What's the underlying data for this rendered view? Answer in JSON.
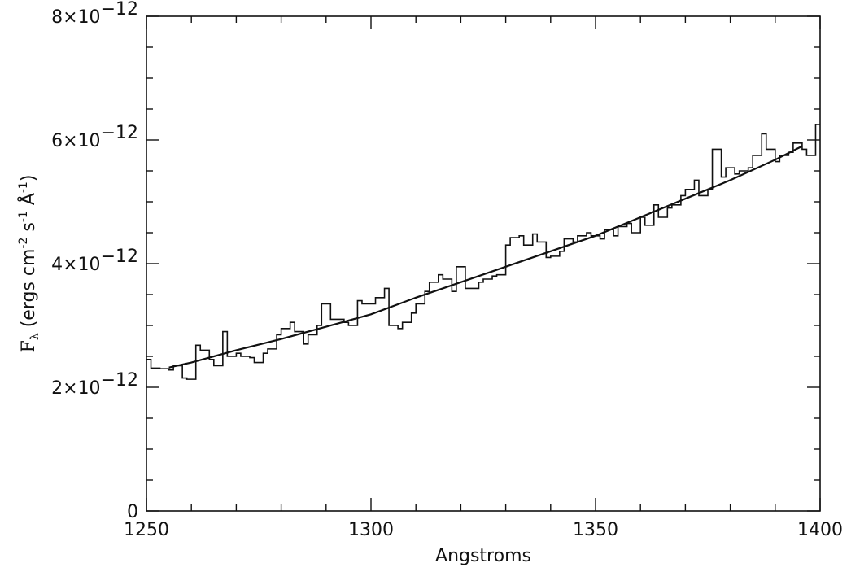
{
  "chart_data": {
    "type": "line",
    "xlabel": "Angstroms",
    "ylabel": {
      "main": "F",
      "sub": "λ",
      "units_prefix": " (ergs cm",
      "units_cm_exp": "-2",
      "units_mid": " s",
      "units_s_exp": "-1",
      "units_A": " Å",
      "units_A_exp": "-1",
      "units_suffix": ")"
    },
    "xlim": [
      1250,
      1400
    ],
    "ylim": [
      0,
      8e-12
    ],
    "x_ticks": [
      {
        "value": 1250,
        "label": "1250"
      },
      {
        "value": 1300,
        "label": "1300"
      },
      {
        "value": 1350,
        "label": "1350"
      },
      {
        "value": 1400,
        "label": "1400"
      }
    ],
    "y_ticks": [
      {
        "value": 0,
        "label": "0",
        "mant": "",
        "exp": ""
      },
      {
        "value": 2e-12,
        "label": "2×10−12",
        "mant": "2×10",
        "exp": "−12"
      },
      {
        "value": 4e-12,
        "label": "4×10−12",
        "mant": "4×10",
        "exp": "−12"
      },
      {
        "value": 6e-12,
        "label": "6×10−12",
        "mant": "6×10",
        "exp": "−12"
      },
      {
        "value": 8e-12,
        "label": "8×10−12",
        "mant": "8×10",
        "exp": "−12"
      }
    ],
    "series": [
      {
        "style": "step",
        "x": [
          1250,
          1251,
          1253,
          1255,
          1256,
          1258,
          1259,
          1261,
          1262,
          1264,
          1265,
          1267,
          1268,
          1270,
          1271,
          1273,
          1274,
          1276,
          1277,
          1279,
          1280,
          1282,
          1283,
          1285,
          1286,
          1288,
          1289,
          1291,
          1292,
          1294,
          1295,
          1297,
          1298,
          1300,
          1301,
          1303,
          1304,
          1306,
          1307,
          1309,
          1310,
          1312,
          1313,
          1315,
          1316,
          1318,
          1319,
          1321,
          1322,
          1324,
          1325,
          1327,
          1328,
          1330,
          1331,
          1333,
          1334,
          1336,
          1337,
          1339,
          1340,
          1342,
          1343,
          1345,
          1346,
          1348,
          1349,
          1351,
          1352,
          1354,
          1355,
          1357,
          1358,
          1360,
          1361,
          1363,
          1364,
          1366,
          1367,
          1369,
          1370,
          1372,
          1373,
          1375,
          1376,
          1378,
          1379,
          1381,
          1382,
          1384,
          1385,
          1387,
          1388,
          1390,
          1391,
          1393,
          1394,
          1396,
          1397,
          1399,
          1400
        ],
        "values": [
          2.45e-12,
          2.31e-12,
          2.3e-12,
          2.28e-12,
          2.35e-12,
          2.15e-12,
          2.13e-12,
          2.68e-12,
          2.6e-12,
          2.45e-12,
          2.35e-12,
          2.9e-12,
          2.5e-12,
          2.55e-12,
          2.5e-12,
          2.48e-12,
          2.4e-12,
          2.55e-12,
          2.62e-12,
          2.85e-12,
          2.95e-12,
          3.05e-12,
          2.9e-12,
          2.7e-12,
          2.85e-12,
          3e-12,
          3.35e-12,
          3.1e-12,
          3.1e-12,
          3.05e-12,
          3e-12,
          3.4e-12,
          3.35e-12,
          3.35e-12,
          3.45e-12,
          3.6e-12,
          3e-12,
          2.95e-12,
          3.05e-12,
          3.2e-12,
          3.35e-12,
          3.55e-12,
          3.7e-12,
          3.82e-12,
          3.75e-12,
          3.55e-12,
          3.95e-12,
          3.6e-12,
          3.6e-12,
          3.7e-12,
          3.75e-12,
          3.8e-12,
          3.82e-12,
          4.3e-12,
          4.42e-12,
          4.45e-12,
          4.3e-12,
          4.48e-12,
          4.35e-12,
          4.1e-12,
          4.12e-12,
          4.2e-12,
          4.4e-12,
          4.35e-12,
          4.45e-12,
          4.5e-12,
          4.45e-12,
          4.4e-12,
          4.55e-12,
          4.45e-12,
          4.6e-12,
          4.65e-12,
          4.5e-12,
          4.75e-12,
          4.62e-12,
          4.95e-12,
          4.75e-12,
          4.9e-12,
          4.95e-12,
          5.1e-12,
          5.2e-12,
          5.35e-12,
          5.1e-12,
          5.2e-12,
          5.85e-12,
          5.4e-12,
          5.55e-12,
          5.45e-12,
          5.5e-12,
          5.55e-12,
          5.75e-12,
          6.1e-12,
          5.85e-12,
          5.65e-12,
          5.75e-12,
          5.8e-12,
          5.95e-12,
          5.85e-12,
          5.75e-12,
          6.25e-12,
          6e-12
        ]
      },
      {
        "style": "smooth-fit",
        "x": [
          1255,
          1260,
          1270,
          1280,
          1290,
          1300,
          1310,
          1320,
          1330,
          1340,
          1350,
          1360,
          1370,
          1380,
          1390,
          1396
        ],
        "values": [
          2.32e-12,
          2.4e-12,
          2.6e-12,
          2.78e-12,
          2.98e-12,
          3.18e-12,
          3.45e-12,
          3.7e-12,
          3.95e-12,
          4.2e-12,
          4.45e-12,
          4.75e-12,
          5.05e-12,
          5.35e-12,
          5.68e-12,
          5.9e-12
        ]
      }
    ]
  }
}
